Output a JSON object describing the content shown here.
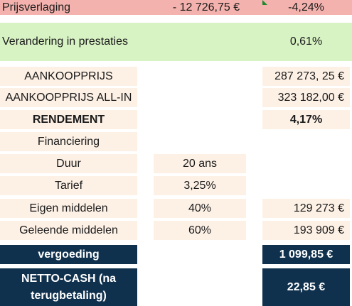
{
  "price_reduction": {
    "label": "Prijsverlaging",
    "amount": "- 12 726,75 €",
    "percent": "-4,24%",
    "marker_color": "#1e8a2e"
  },
  "performance_change": {
    "label": "Verandering in prestaties",
    "percent": "0,61%"
  },
  "purchase": {
    "price_label": "AANKOOPPRIJS",
    "price_value": "287 273, 25 €",
    "allin_label": "AANKOOPPRIJS ALL-IN",
    "allin_value": "323 182,00 €"
  },
  "yield": {
    "label": "RENDEMENT",
    "value": "4,17%"
  },
  "financing": {
    "header": "Financiering",
    "duration_label": "Duur",
    "duration_value": "20 ans",
    "rate_label": "Tarief",
    "rate_value": "3,25%",
    "own_funds_label": "Eigen middelen",
    "own_funds_percent": "40%",
    "own_funds_amount": "129 273 €",
    "borrowed_label": "Geleende middelen",
    "borrowed_percent": "60%",
    "borrowed_amount": "193 909 €"
  },
  "summary": {
    "fee_label": "vergoeding",
    "fee_value": "1 099,85 €",
    "net_cash_label": "NETTO-CASH (na terugbetaling)",
    "net_cash_value": "22,85 €"
  },
  "colors": {
    "beige": "#fdf1e6",
    "pink": "#f3b2ad",
    "green": "#d7f2c3",
    "navy": "#10314e"
  }
}
